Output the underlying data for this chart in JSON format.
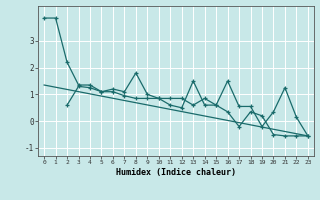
{
  "xlabel": "Humidex (Indice chaleur)",
  "background_color": "#c8e8e8",
  "line_color": "#1a6b6b",
  "xlim": [
    -0.5,
    23.5
  ],
  "ylim": [
    -1.3,
    4.3
  ],
  "yticks": [
    -1,
    0,
    1,
    2,
    3
  ],
  "xticks": [
    0,
    1,
    2,
    3,
    4,
    5,
    6,
    7,
    8,
    9,
    10,
    11,
    12,
    13,
    14,
    15,
    16,
    17,
    18,
    19,
    20,
    21,
    22,
    23
  ],
  "series1_x": [
    0,
    1,
    2,
    3,
    4,
    5,
    6,
    7,
    8,
    9,
    10,
    11,
    12,
    13,
    14,
    15,
    16,
    17,
    18,
    19,
    20,
    21,
    22,
    23
  ],
  "series1_y": [
    3.85,
    3.85,
    2.2,
    1.35,
    1.35,
    1.1,
    1.2,
    1.1,
    1.8,
    1.0,
    0.85,
    0.85,
    0.85,
    0.6,
    0.85,
    0.6,
    1.5,
    0.55,
    0.55,
    -0.2,
    0.35,
    1.25,
    0.15,
    -0.55
  ],
  "series2_x": [
    2,
    3,
    4,
    5,
    6,
    7,
    8,
    9,
    10,
    11,
    12,
    13,
    14,
    15,
    16,
    17,
    18,
    19,
    20,
    21,
    22,
    23
  ],
  "series2_y": [
    0.6,
    1.3,
    1.25,
    1.1,
    1.1,
    0.95,
    0.85,
    0.85,
    0.85,
    0.6,
    0.5,
    1.5,
    0.6,
    0.6,
    0.35,
    -0.2,
    0.35,
    0.2,
    -0.5,
    -0.55,
    -0.55,
    -0.55
  ],
  "trend_x": [
    0,
    23
  ],
  "trend_y": [
    1.35,
    -0.55
  ]
}
